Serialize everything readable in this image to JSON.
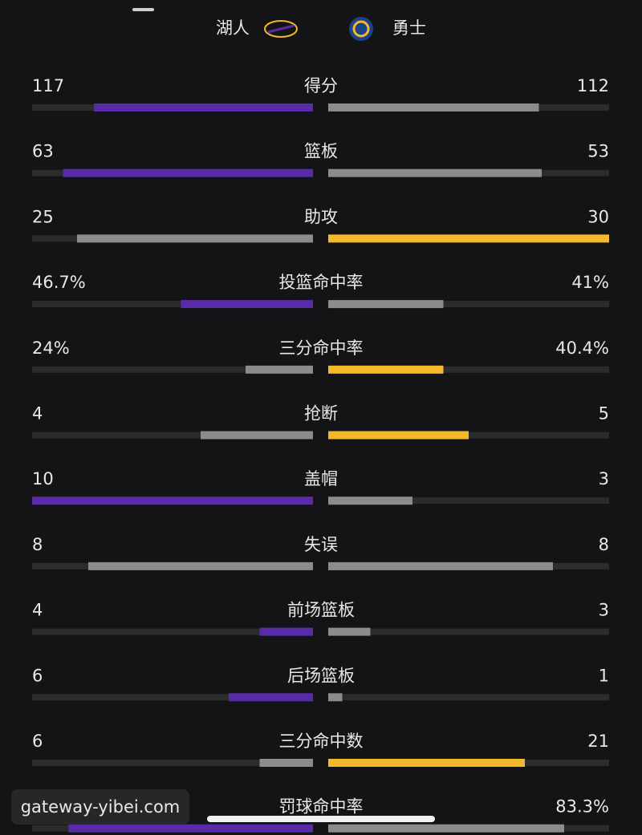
{
  "header": {
    "home": "湖人",
    "away": "勇士"
  },
  "stats": [
    {
      "label": "得分",
      "home": "117",
      "away": "112",
      "home_bar": 78,
      "away_bar": 75,
      "home_color": "#5a2ba8",
      "away_color": "#8c8c8c"
    },
    {
      "label": "篮板",
      "home": "63",
      "away": "53",
      "home_bar": 89,
      "away_bar": 76,
      "home_color": "#5a2ba8",
      "away_color": "#8c8c8c"
    },
    {
      "label": "助攻",
      "home": "25",
      "away": "30",
      "home_bar": 84,
      "away_bar": 100,
      "home_color": "#8c8c8c",
      "away_color": "#f4b82c"
    },
    {
      "label": "投篮命中率",
      "home": "46.7%",
      "away": "41%",
      "home_bar": 47,
      "away_bar": 41,
      "home_color": "#5a2ba8",
      "away_color": "#8c8c8c"
    },
    {
      "label": "三分命中率",
      "home": "24%",
      "away": "40.4%",
      "home_bar": 24,
      "away_bar": 41,
      "home_color": "#8c8c8c",
      "away_color": "#f4b82c"
    },
    {
      "label": "抢断",
      "home": "4",
      "away": "5",
      "home_bar": 40,
      "away_bar": 50,
      "home_color": "#8c8c8c",
      "away_color": "#f4b82c"
    },
    {
      "label": "盖帽",
      "home": "10",
      "away": "3",
      "home_bar": 100,
      "away_bar": 30,
      "home_color": "#5a2ba8",
      "away_color": "#8c8c8c"
    },
    {
      "label": "失误",
      "home": "8",
      "away": "8",
      "home_bar": 80,
      "away_bar": 80,
      "home_color": "#8c8c8c",
      "away_color": "#8c8c8c"
    },
    {
      "label": "前场篮板",
      "home": "4",
      "away": "3",
      "home_bar": 19,
      "away_bar": 15,
      "home_color": "#5a2ba8",
      "away_color": "#8c8c8c"
    },
    {
      "label": "后场篮板",
      "home": "6",
      "away": "1",
      "home_bar": 30,
      "away_bar": 5,
      "home_color": "#5a2ba8",
      "away_color": "#8c8c8c"
    },
    {
      "label": "三分命中数",
      "home": "6",
      "away": "21",
      "home_bar": 19,
      "away_bar": 70,
      "home_color": "#8c8c8c",
      "away_color": "#f4b82c"
    },
    {
      "label": "罚球命中率",
      "home": null,
      "away": "83.3%",
      "home_bar": 87,
      "away_bar": 84,
      "home_color": "#5a2ba8",
      "away_color": "#8c8c8c"
    }
  ],
  "watermark": "gateway-yibei.com"
}
